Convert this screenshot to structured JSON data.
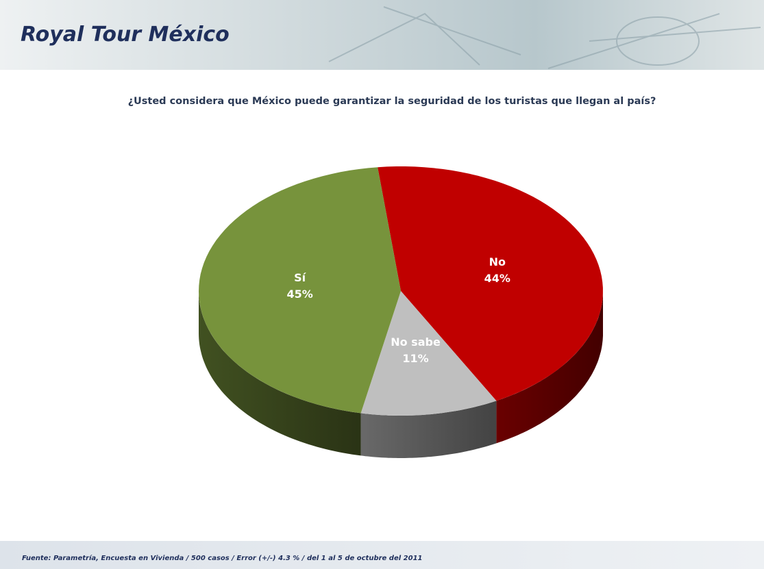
{
  "header": {
    "title": "Royal Tour México"
  },
  "chart_data": {
    "type": "pie",
    "title": "¿Usted considera que México puede garantizar la seguridad de los turistas que llegan al país?",
    "categories": [
      "No",
      "No sabe",
      "Sí"
    ],
    "values": [
      44,
      11,
      45
    ],
    "value_labels": [
      "44%",
      "11%",
      "45%"
    ],
    "colors": [
      "#c00000",
      "#bfbfbf",
      "#77933c"
    ]
  },
  "footer": {
    "source": "Fuente: Parametría, Encuesta en Vivienda / 500 casos / Error (+/-) 4.3 % / del 1 al 5 de octubre del 2011"
  }
}
